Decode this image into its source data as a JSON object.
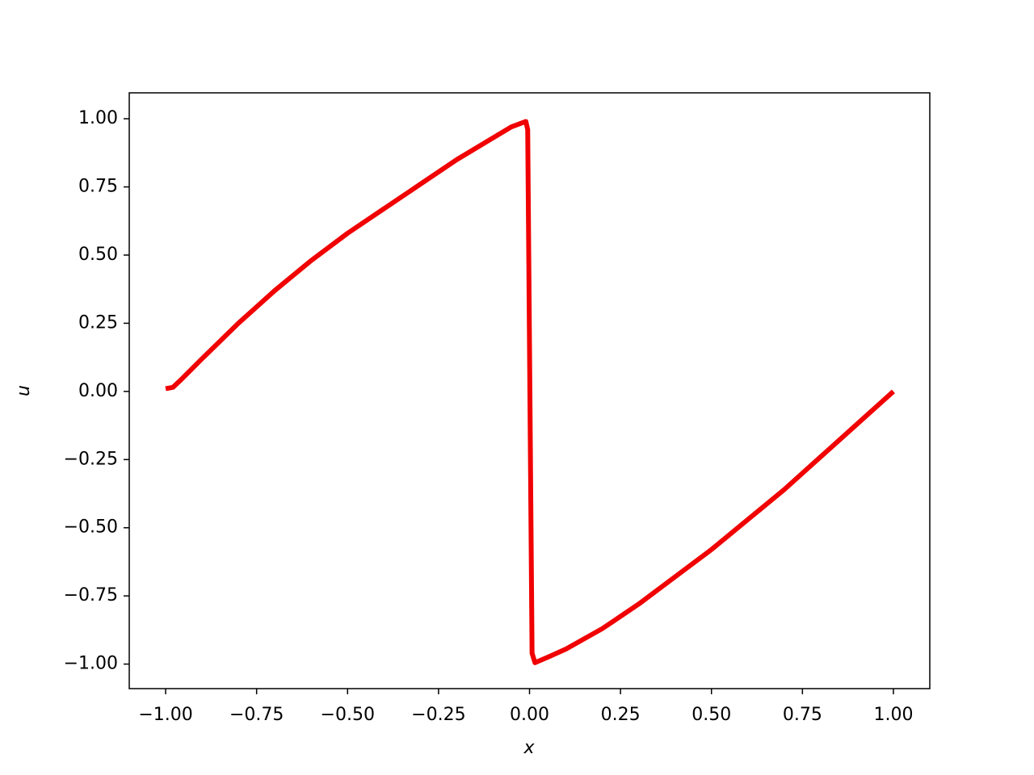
{
  "chart_data": {
    "type": "line",
    "xlabel": "x",
    "ylabel": "u",
    "x": [
      -1,
      -0.98,
      -0.96,
      -0.93,
      -0.9,
      -0.8,
      -0.7,
      -0.6,
      -0.5,
      -0.4,
      -0.3,
      -0.2,
      -0.1,
      -0.05,
      -0.01,
      -0.005,
      0.007,
      0.015,
      0.05,
      0.1,
      0.2,
      0.3,
      0.4,
      0.5,
      0.6,
      0.7,
      0.8,
      0.9,
      1.0
    ],
    "series": [
      {
        "color": "#f00000",
        "values": [
          0.01,
          0.015,
          0.04,
          0.08,
          0.12,
          0.25,
          0.37,
          0.48,
          0.58,
          0.67,
          0.76,
          0.85,
          0.93,
          0.97,
          0.99,
          0.96,
          -0.96,
          -0.995,
          -0.975,
          -0.945,
          -0.87,
          -0.78,
          -0.68,
          -0.58,
          -0.47,
          -0.36,
          -0.24,
          -0.12,
          0.0
        ]
      }
    ],
    "xlim": [
      -1.1,
      1.1
    ],
    "ylim": [
      -1.09,
      1.095
    ],
    "xticks": [
      {
        "value": -1,
        "label": "−1.00"
      },
      {
        "value": -0.75,
        "label": "−0.75"
      },
      {
        "value": -0.5,
        "label": "−0.50"
      },
      {
        "value": -0.25,
        "label": "−0.25"
      },
      {
        "value": 0,
        "label": "0.00"
      },
      {
        "value": 0.25,
        "label": "0.25"
      },
      {
        "value": 0.5,
        "label": "0.50"
      },
      {
        "value": 0.75,
        "label": "0.75"
      },
      {
        "value": 1,
        "label": "1.00"
      }
    ],
    "yticks": [
      {
        "value": -1,
        "label": "−1.00"
      },
      {
        "value": -0.75,
        "label": "−0.75"
      },
      {
        "value": -0.5,
        "label": "−0.50"
      },
      {
        "value": -0.25,
        "label": "−0.25"
      },
      {
        "value": 0,
        "label": "0.00"
      },
      {
        "value": 0.25,
        "label": "0.25"
      },
      {
        "value": 0.5,
        "label": "0.50"
      },
      {
        "value": 0.75,
        "label": "0.75"
      },
      {
        "value": 1,
        "label": "1.00"
      }
    ],
    "grid": false
  }
}
